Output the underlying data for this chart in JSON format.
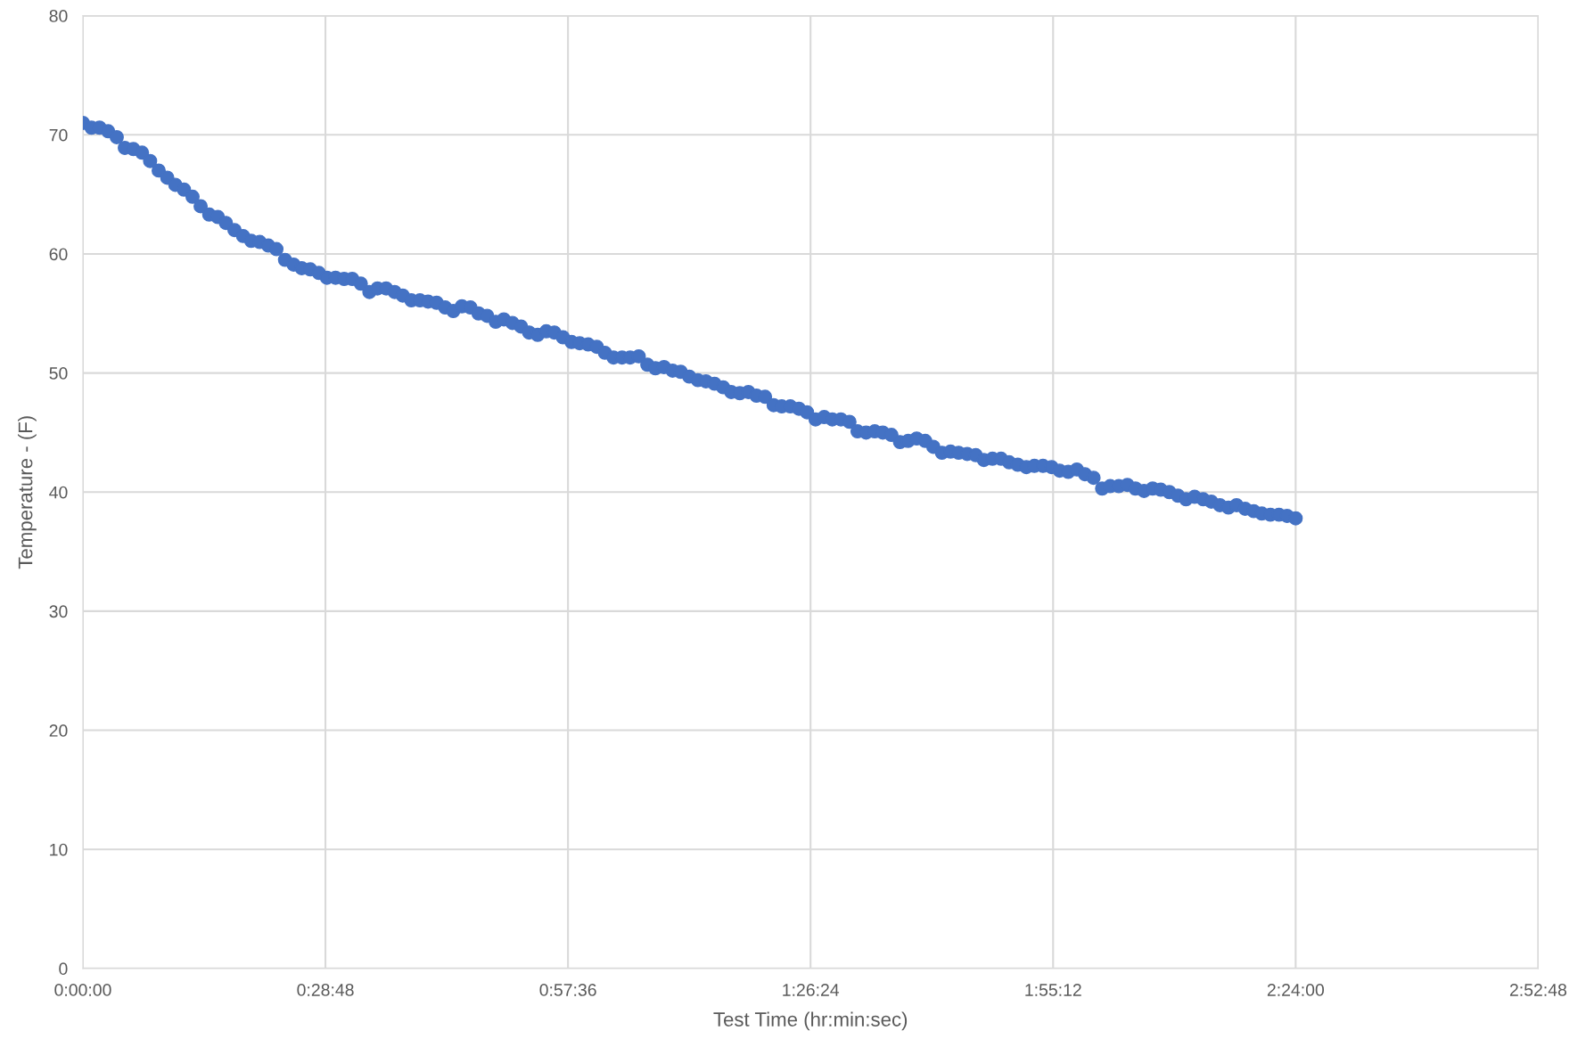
{
  "chart_data": {
    "type": "scatter",
    "xlabel": "Test Time (hr:min:sec)",
    "ylabel": "Temperature - (F)",
    "xlim": [
      0,
      2.88
    ],
    "xticks": [
      {
        "value": 0,
        "label": "0:00:00"
      },
      {
        "value": 0.48,
        "label": "0:28:48"
      },
      {
        "value": 0.96,
        "label": "0:57:36"
      },
      {
        "value": 1.44,
        "label": "1:26:24"
      },
      {
        "value": 1.92,
        "label": "1:55:12"
      },
      {
        "value": 2.4,
        "label": "2:24:00"
      },
      {
        "value": 2.88,
        "label": "2:52:48"
      }
    ],
    "ylim": [
      0,
      80
    ],
    "yticks": [
      0,
      10,
      20,
      30,
      40,
      50,
      60,
      70,
      80
    ],
    "grid": true,
    "marker": "circle",
    "series": [
      {
        "color": "#4472c4",
        "x": [
          0,
          0.017,
          0.033,
          0.05,
          0.067,
          0.083,
          0.1,
          0.117,
          0.133,
          0.15,
          0.167,
          0.183,
          0.2,
          0.217,
          0.233,
          0.25,
          0.267,
          0.283,
          0.3,
          0.317,
          0.333,
          0.35,
          0.367,
          0.383,
          0.4,
          0.417,
          0.433,
          0.45,
          0.467,
          0.483,
          0.5,
          0.517,
          0.533,
          0.55,
          0.567,
          0.583,
          0.6,
          0.617,
          0.633,
          0.65,
          0.667,
          0.683,
          0.7,
          0.717,
          0.733,
          0.75,
          0.767,
          0.783,
          0.8,
          0.817,
          0.833,
          0.85,
          0.867,
          0.883,
          0.9,
          0.917,
          0.933,
          0.95,
          0.967,
          0.983,
          1.0,
          1.017,
          1.033,
          1.05,
          1.067,
          1.083,
          1.1,
          1.117,
          1.133,
          1.15,
          1.167,
          1.183,
          1.2,
          1.217,
          1.233,
          1.25,
          1.267,
          1.283,
          1.3,
          1.317,
          1.333,
          1.35,
          1.367,
          1.383,
          1.4,
          1.417,
          1.433,
          1.45,
          1.467,
          1.483,
          1.5,
          1.517,
          1.533,
          1.55,
          1.567,
          1.583,
          1.6,
          1.617,
          1.633,
          1.65,
          1.667,
          1.683,
          1.7,
          1.717,
          1.733,
          1.75,
          1.767,
          1.783,
          1.8,
          1.817,
          1.833,
          1.85,
          1.867,
          1.883,
          1.9,
          1.917,
          1.933,
          1.95,
          1.967,
          1.983,
          2.0,
          2.017,
          2.033,
          2.05,
          2.067,
          2.083,
          2.1,
          2.117,
          2.133,
          2.15,
          2.167,
          2.183,
          2.2,
          2.217,
          2.233,
          2.25,
          2.267,
          2.283,
          2.3,
          2.317,
          2.333,
          2.35,
          2.367,
          2.383,
          2.4
        ],
        "values": [
          71.0,
          70.6,
          70.6,
          70.3,
          69.8,
          68.9,
          68.8,
          68.5,
          67.8,
          67.0,
          66.4,
          65.8,
          65.4,
          64.8,
          64.0,
          63.3,
          63.1,
          62.6,
          62.0,
          61.5,
          61.1,
          61.0,
          60.7,
          60.4,
          59.5,
          59.1,
          58.8,
          58.7,
          58.4,
          58.0,
          58.0,
          57.9,
          57.9,
          57.5,
          56.8,
          57.1,
          57.1,
          56.8,
          56.5,
          56.1,
          56.1,
          56.0,
          55.9,
          55.5,
          55.2,
          55.6,
          55.5,
          55.0,
          54.8,
          54.3,
          54.5,
          54.2,
          53.9,
          53.4,
          53.2,
          53.5,
          53.4,
          53.0,
          52.6,
          52.5,
          52.4,
          52.2,
          51.7,
          51.3,
          51.3,
          51.3,
          51.4,
          50.7,
          50.4,
          50.5,
          50.2,
          50.1,
          49.7,
          49.4,
          49.3,
          49.1,
          48.8,
          48.4,
          48.3,
          48.4,
          48.1,
          48.0,
          47.3,
          47.2,
          47.2,
          47.0,
          46.7,
          46.1,
          46.3,
          46.1,
          46.1,
          45.9,
          45.1,
          45.0,
          45.1,
          45.0,
          44.8,
          44.2,
          44.3,
          44.5,
          44.3,
          43.8,
          43.3,
          43.4,
          43.3,
          43.2,
          43.1,
          42.7,
          42.8,
          42.8,
          42.5,
          42.3,
          42.1,
          42.2,
          42.2,
          42.1,
          41.8,
          41.7,
          41.9,
          41.5,
          41.2,
          40.3,
          40.5,
          40.5,
          40.6,
          40.3,
          40.1,
          40.3,
          40.2,
          40.0,
          39.7,
          39.4,
          39.6,
          39.4,
          39.2,
          38.9,
          38.7,
          38.9,
          38.6,
          38.4,
          38.2,
          38.1,
          38.1,
          38.0,
          37.8
        ]
      }
    ]
  }
}
